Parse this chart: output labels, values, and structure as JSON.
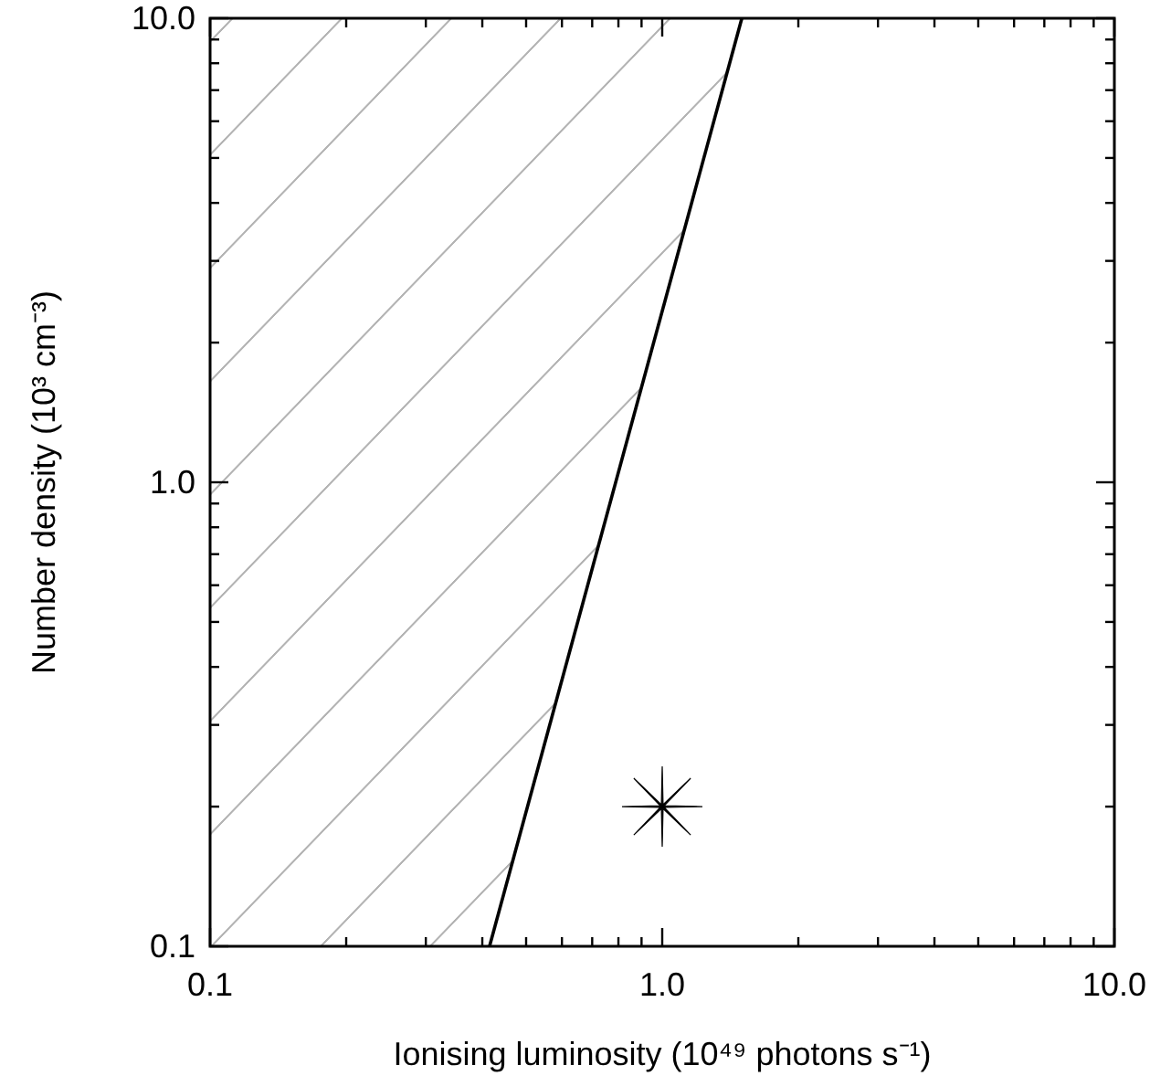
{
  "chart_data": {
    "type": "line",
    "xlabel": "Ionising luminosity (10⁴⁹ photons s⁻¹)",
    "ylabel": "Number density (10³ cm⁻³)",
    "log": "xy",
    "grid": false,
    "xlim": [
      0.1,
      10
    ],
    "ylim": [
      0.1,
      10
    ],
    "xticks": [
      {
        "value": 0.1,
        "label": "0.1"
      },
      {
        "value": 0.2,
        "label": null
      },
      {
        "value": 0.3,
        "label": null
      },
      {
        "value": 0.4,
        "label": null
      },
      {
        "value": 0.5,
        "label": null
      },
      {
        "value": 0.6,
        "label": null
      },
      {
        "value": 0.7,
        "label": null
      },
      {
        "value": 0.8,
        "label": null
      },
      {
        "value": 0.9,
        "label": null
      },
      {
        "value": 1,
        "label": "1.0"
      },
      {
        "value": 2,
        "label": null
      },
      {
        "value": 3,
        "label": null
      },
      {
        "value": 4,
        "label": null
      },
      {
        "value": 5,
        "label": null
      },
      {
        "value": 6,
        "label": null
      },
      {
        "value": 7,
        "label": null
      },
      {
        "value": 8,
        "label": null
      },
      {
        "value": 9,
        "label": null
      },
      {
        "value": 10,
        "label": "10.0"
      }
    ],
    "yticks": [
      {
        "value": 0.1,
        "label": "0.1"
      },
      {
        "value": 0.2,
        "label": null
      },
      {
        "value": 0.3,
        "label": null
      },
      {
        "value": 0.4,
        "label": null
      },
      {
        "value": 0.5,
        "label": null
      },
      {
        "value": 0.6,
        "label": null
      },
      {
        "value": 0.7,
        "label": null
      },
      {
        "value": 0.8,
        "label": null
      },
      {
        "value": 0.9,
        "label": null
      },
      {
        "value": 1,
        "label": "1.0"
      },
      {
        "value": 2,
        "label": null
      },
      {
        "value": 3,
        "label": null
      },
      {
        "value": 4,
        "label": null
      },
      {
        "value": 5,
        "label": null
      },
      {
        "value": 6,
        "label": null
      },
      {
        "value": 7,
        "label": null
      },
      {
        "value": 8,
        "label": null
      },
      {
        "value": 9,
        "label": null
      },
      {
        "value": 10,
        "label": "10.0"
      }
    ],
    "series": [
      {
        "color": "#000000",
        "x": [
          0.415,
          1.5
        ],
        "values": [
          0.1,
          10
        ]
      },
      {
        "type": "scatter",
        "color": "#000000",
        "marker": "star",
        "x": [
          1.0
        ],
        "values": [
          0.2
        ]
      }
    ]
  }
}
